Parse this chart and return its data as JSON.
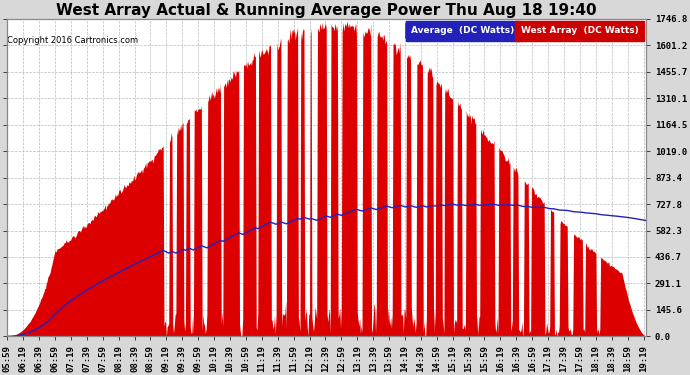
{
  "title": "West Array Actual & Running Average Power Thu Aug 18 19:40",
  "copyright": "Copyright 2016 Cartronics.com",
  "yticks": [
    0.0,
    145.6,
    291.1,
    436.7,
    582.3,
    727.8,
    873.4,
    1019.0,
    1164.5,
    1310.1,
    1455.7,
    1601.2,
    1746.8
  ],
  "xstart_hour": 5,
  "xstart_min": 59,
  "xend_hour": 19,
  "xend_min": 22,
  "time_step_min": 20,
  "legend_labels": [
    "Average  (DC Watts)",
    "West Array  (DC Watts)"
  ],
  "legend_bg_colors": [
    "#2222bb",
    "#cc0000"
  ],
  "plot_bg": "#ffffff",
  "fig_bg": "#d8d8d8",
  "fill_color": "#dd0000",
  "avg_color": "#2222bb",
  "grid_color": "#bbbbbb",
  "title_fontsize": 11,
  "tick_fontsize": 6.5,
  "copyright_fontsize": 6,
  "ymax": 1746.8,
  "peak_val": 1746.8
}
